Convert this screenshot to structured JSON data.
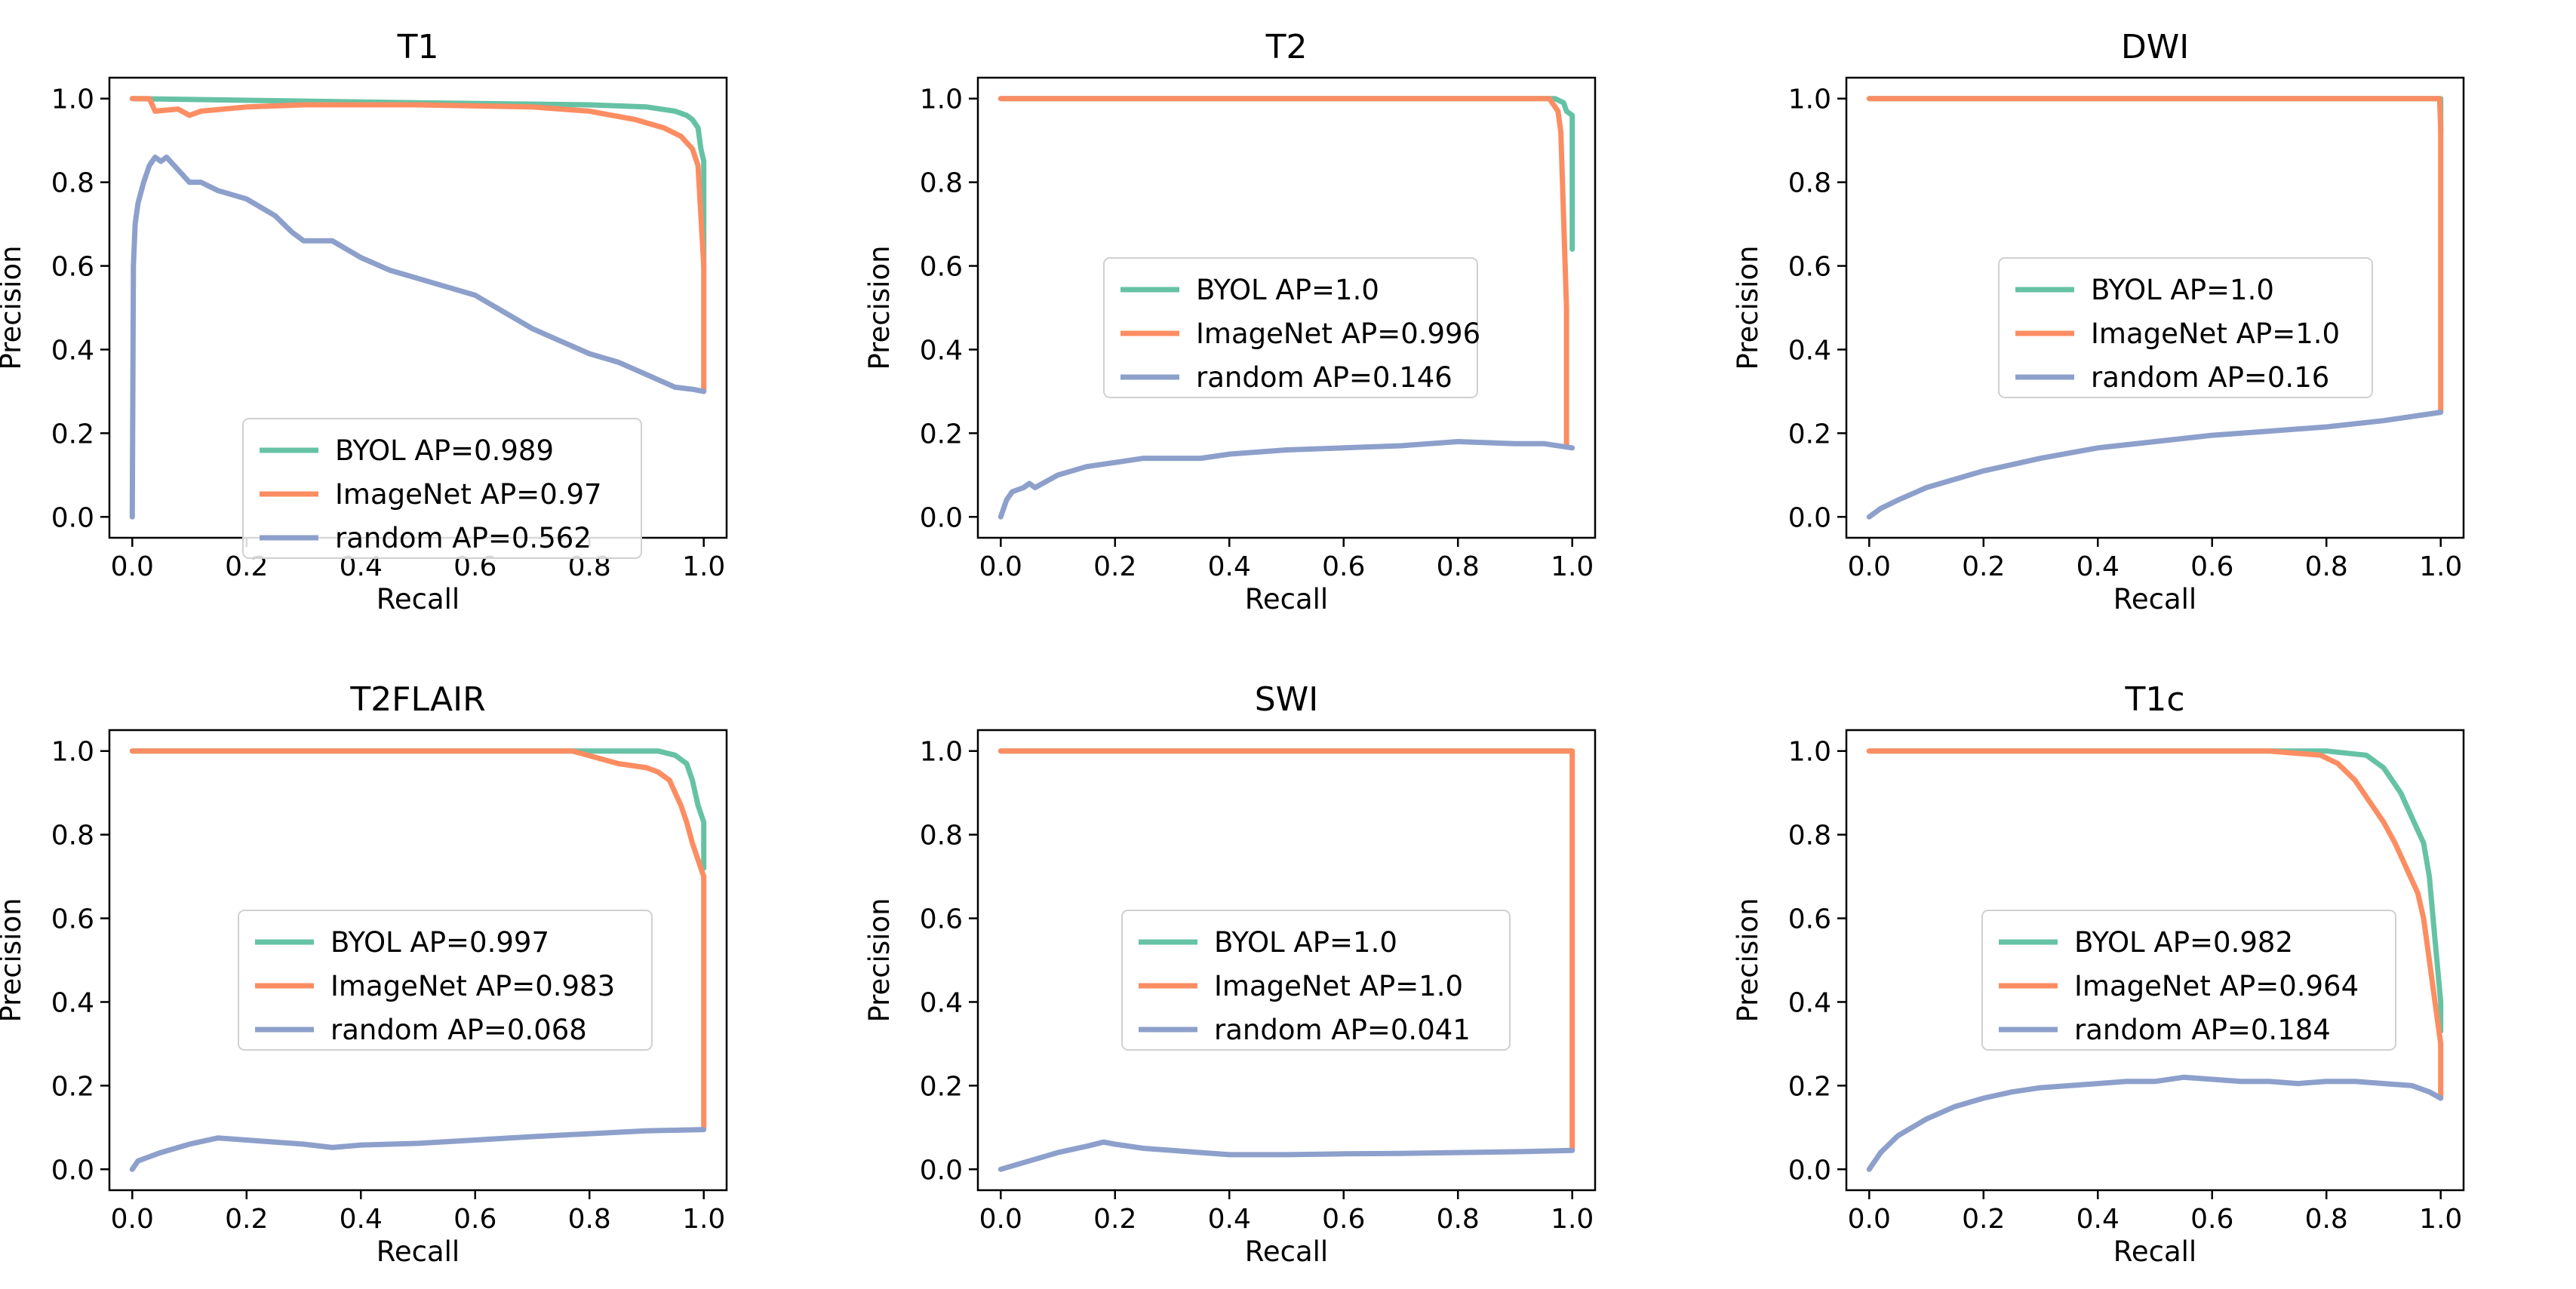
{
  "colors": {
    "BYOL": "#66c2a5",
    "ImageNet": "#fc8d62",
    "random": "#8da0cb"
  },
  "chart_data": [
    {
      "type": "line",
      "title": "T1",
      "xlabel": "Recall",
      "ylabel": "Precision",
      "xlim": [
        -0.04,
        1.04
      ],
      "ylim": [
        -0.05,
        1.05
      ],
      "xticks": [
        "0.0",
        "0.2",
        "0.4",
        "0.6",
        "0.8",
        "1.0"
      ],
      "yticks": [
        "0.0",
        "0.2",
        "0.4",
        "0.6",
        "0.8",
        "1.0"
      ],
      "legend": "lower-center",
      "series": [
        {
          "name": "BYOL",
          "legend_label": "BYOL AP=0.989",
          "x": [
            0,
            0.5,
            0.8,
            0.9,
            0.95,
            0.97,
            0.98,
            0.99,
            0.995,
            1.0,
            1.0
          ],
          "y": [
            1.0,
            0.99,
            0.985,
            0.98,
            0.97,
            0.96,
            0.95,
            0.93,
            0.88,
            0.85,
            0.6
          ]
        },
        {
          "name": "ImageNet",
          "legend_label": "ImageNet AP=0.97",
          "x": [
            0,
            0.03,
            0.04,
            0.08,
            0.1,
            0.12,
            0.2,
            0.3,
            0.5,
            0.7,
            0.8,
            0.88,
            0.93,
            0.96,
            0.98,
            0.99,
            1.0,
            1.0
          ],
          "y": [
            1.0,
            1.0,
            0.97,
            0.975,
            0.96,
            0.97,
            0.98,
            0.985,
            0.985,
            0.98,
            0.97,
            0.95,
            0.93,
            0.91,
            0.88,
            0.84,
            0.6,
            0.3
          ]
        },
        {
          "name": "random",
          "legend_label": "random AP=0.562",
          "x": [
            0,
            0.002,
            0.005,
            0.01,
            0.02,
            0.03,
            0.04,
            0.05,
            0.06,
            0.08,
            0.1,
            0.12,
            0.15,
            0.2,
            0.25,
            0.28,
            0.3,
            0.35,
            0.4,
            0.45,
            0.5,
            0.55,
            0.6,
            0.65,
            0.7,
            0.75,
            0.8,
            0.85,
            0.9,
            0.95,
            0.98,
            1.0
          ],
          "y": [
            0,
            0.6,
            0.7,
            0.75,
            0.8,
            0.84,
            0.86,
            0.85,
            0.86,
            0.83,
            0.8,
            0.8,
            0.78,
            0.76,
            0.72,
            0.68,
            0.66,
            0.66,
            0.62,
            0.59,
            0.57,
            0.55,
            0.53,
            0.49,
            0.45,
            0.42,
            0.39,
            0.37,
            0.34,
            0.31,
            0.305,
            0.3
          ]
        }
      ]
    },
    {
      "type": "line",
      "title": "T2",
      "xlabel": "Recall",
      "ylabel": "Precision",
      "xlim": [
        -0.04,
        1.04
      ],
      "ylim": [
        -0.05,
        1.05
      ],
      "xticks": [
        "0.0",
        "0.2",
        "0.4",
        "0.6",
        "0.8",
        "1.0"
      ],
      "yticks": [
        "0.0",
        "0.2",
        "0.4",
        "0.6",
        "0.8",
        "1.0"
      ],
      "legend": "center",
      "series": [
        {
          "name": "BYOL",
          "legend_label": "BYOL AP=1.0",
          "x": [
            0,
            0.97,
            0.985,
            0.99,
            1.0,
            1.0
          ],
          "y": [
            1.0,
            1.0,
            0.99,
            0.97,
            0.96,
            0.64
          ]
        },
        {
          "name": "ImageNet",
          "legend_label": "ImageNet AP=0.996",
          "x": [
            0,
            0.96,
            0.975,
            0.98,
            0.99,
            0.99
          ],
          "y": [
            1.0,
            1.0,
            0.97,
            0.92,
            0.5,
            0.17
          ]
        },
        {
          "name": "random",
          "legend_label": "random AP=0.146",
          "x": [
            0,
            0.005,
            0.01,
            0.02,
            0.04,
            0.05,
            0.06,
            0.1,
            0.15,
            0.2,
            0.25,
            0.3,
            0.35,
            0.4,
            0.5,
            0.6,
            0.7,
            0.8,
            0.9,
            0.95,
            1.0
          ],
          "y": [
            0,
            0.02,
            0.04,
            0.06,
            0.07,
            0.08,
            0.07,
            0.1,
            0.12,
            0.13,
            0.14,
            0.14,
            0.14,
            0.15,
            0.16,
            0.165,
            0.17,
            0.18,
            0.175,
            0.175,
            0.165
          ]
        }
      ]
    },
    {
      "type": "line",
      "title": "DWI",
      "xlabel": "Recall",
      "ylabel": "Precision",
      "xlim": [
        -0.04,
        1.04
      ],
      "ylim": [
        -0.05,
        1.05
      ],
      "xticks": [
        "0.0",
        "0.2",
        "0.4",
        "0.6",
        "0.8",
        "1.0"
      ],
      "yticks": [
        "0.0",
        "0.2",
        "0.4",
        "0.6",
        "0.8",
        "1.0"
      ],
      "legend": "center-right",
      "series": [
        {
          "name": "BYOL",
          "legend_label": "BYOL AP=1.0",
          "x": [
            0,
            1.0,
            1.0
          ],
          "y": [
            1.0,
            1.0,
            0.92
          ]
        },
        {
          "name": "ImageNet",
          "legend_label": "ImageNet AP=1.0",
          "x": [
            0,
            0.998,
            1.0,
            1.0
          ],
          "y": [
            1.0,
            1.0,
            0.93,
            0.25
          ]
        },
        {
          "name": "random",
          "legend_label": "random AP=0.16",
          "x": [
            0,
            0.02,
            0.05,
            0.1,
            0.15,
            0.2,
            0.3,
            0.4,
            0.5,
            0.6,
            0.7,
            0.8,
            0.9,
            1.0
          ],
          "y": [
            0,
            0.02,
            0.04,
            0.07,
            0.09,
            0.11,
            0.14,
            0.165,
            0.18,
            0.195,
            0.205,
            0.215,
            0.23,
            0.25
          ]
        }
      ]
    },
    {
      "type": "line",
      "title": "T2FLAIR",
      "xlabel": "Recall",
      "ylabel": "Precision",
      "xlim": [
        -0.04,
        1.04
      ],
      "ylim": [
        -0.05,
        1.05
      ],
      "xticks": [
        "0.0",
        "0.2",
        "0.4",
        "0.6",
        "0.8",
        "1.0"
      ],
      "yticks": [
        "0.0",
        "0.2",
        "0.4",
        "0.6",
        "0.8",
        "1.0"
      ],
      "legend": "center",
      "series": [
        {
          "name": "BYOL",
          "legend_label": "BYOL AP=0.997",
          "x": [
            0,
            0.75,
            0.85,
            0.92,
            0.95,
            0.97,
            0.98,
            0.99,
            1.0,
            1.0
          ],
          "y": [
            1.0,
            1.0,
            1.0,
            1.0,
            0.99,
            0.97,
            0.93,
            0.87,
            0.83,
            0.72
          ]
        },
        {
          "name": "ImageNet",
          "legend_label": "ImageNet AP=0.983",
          "x": [
            0,
            0.77,
            0.85,
            0.9,
            0.92,
            0.94,
            0.95,
            0.96,
            0.97,
            0.98,
            0.99,
            1.0,
            1.0
          ],
          "y": [
            1.0,
            1.0,
            0.97,
            0.96,
            0.95,
            0.93,
            0.9,
            0.87,
            0.83,
            0.78,
            0.74,
            0.7,
            0.1
          ]
        },
        {
          "name": "random",
          "legend_label": "random AP=0.068",
          "x": [
            0,
            0.01,
            0.03,
            0.05,
            0.1,
            0.15,
            0.2,
            0.25,
            0.3,
            0.35,
            0.4,
            0.5,
            0.6,
            0.7,
            0.8,
            0.9,
            1.0
          ],
          "y": [
            0,
            0.02,
            0.03,
            0.04,
            0.06,
            0.075,
            0.07,
            0.065,
            0.06,
            0.052,
            0.058,
            0.062,
            0.07,
            0.078,
            0.085,
            0.092,
            0.095
          ]
        }
      ]
    },
    {
      "type": "line",
      "title": "SWI",
      "xlabel": "Recall",
      "ylabel": "Precision",
      "xlim": [
        -0.04,
        1.04
      ],
      "ylim": [
        -0.05,
        1.05
      ],
      "xticks": [
        "0.0",
        "0.2",
        "0.4",
        "0.6",
        "0.8",
        "1.0"
      ],
      "yticks": [
        "0.0",
        "0.2",
        "0.4",
        "0.6",
        "0.8",
        "1.0"
      ],
      "legend": "center",
      "series": [
        {
          "name": "BYOL",
          "legend_label": "BYOL AP=1.0",
          "x": [
            0,
            1.0
          ],
          "y": [
            1.0,
            1.0
          ]
        },
        {
          "name": "ImageNet",
          "legend_label": "ImageNet AP=1.0",
          "x": [
            0,
            1.0,
            1.0
          ],
          "y": [
            1.0,
            1.0,
            0.045
          ]
        },
        {
          "name": "random",
          "legend_label": "random AP=0.041",
          "x": [
            0,
            0.05,
            0.1,
            0.15,
            0.18,
            0.2,
            0.25,
            0.3,
            0.35,
            0.4,
            0.5,
            0.6,
            0.7,
            0.8,
            0.9,
            1.0
          ],
          "y": [
            0,
            0.02,
            0.04,
            0.055,
            0.065,
            0.06,
            0.05,
            0.045,
            0.04,
            0.035,
            0.035,
            0.037,
            0.038,
            0.04,
            0.042,
            0.045
          ]
        }
      ]
    },
    {
      "type": "line",
      "title": "T1c",
      "xlabel": "Recall",
      "ylabel": "Precision",
      "xlim": [
        -0.04,
        1.04
      ],
      "ylim": [
        -0.05,
        1.05
      ],
      "xticks": [
        "0.0",
        "0.2",
        "0.4",
        "0.6",
        "0.8",
        "1.0"
      ],
      "yticks": [
        "0.0",
        "0.2",
        "0.4",
        "0.6",
        "0.8",
        "1.0"
      ],
      "legend": "center",
      "series": [
        {
          "name": "BYOL",
          "legend_label": "BYOL AP=0.982",
          "x": [
            0,
            0.7,
            0.8,
            0.87,
            0.9,
            0.93,
            0.95,
            0.97,
            0.98,
            0.99,
            1.0,
            1.0
          ],
          "y": [
            1.0,
            1.0,
            1.0,
            0.99,
            0.96,
            0.9,
            0.84,
            0.78,
            0.7,
            0.55,
            0.4,
            0.33
          ]
        },
        {
          "name": "ImageNet",
          "legend_label": "ImageNet AP=0.964",
          "x": [
            0,
            0.7,
            0.79,
            0.82,
            0.85,
            0.88,
            0.9,
            0.92,
            0.94,
            0.96,
            0.97,
            0.98,
            0.99,
            1.0,
            1.0
          ],
          "y": [
            1.0,
            1.0,
            0.99,
            0.97,
            0.93,
            0.87,
            0.83,
            0.78,
            0.72,
            0.66,
            0.6,
            0.5,
            0.4,
            0.3,
            0.17
          ]
        },
        {
          "name": "random",
          "legend_label": "random AP=0.184",
          "x": [
            0,
            0.02,
            0.05,
            0.1,
            0.15,
            0.2,
            0.25,
            0.3,
            0.35,
            0.4,
            0.45,
            0.5,
            0.55,
            0.6,
            0.65,
            0.7,
            0.75,
            0.8,
            0.85,
            0.9,
            0.95,
            0.98,
            1.0
          ],
          "y": [
            0,
            0.04,
            0.08,
            0.12,
            0.15,
            0.17,
            0.185,
            0.195,
            0.2,
            0.205,
            0.21,
            0.21,
            0.22,
            0.215,
            0.21,
            0.21,
            0.205,
            0.21,
            0.21,
            0.205,
            0.2,
            0.185,
            0.17
          ]
        }
      ]
    }
  ]
}
